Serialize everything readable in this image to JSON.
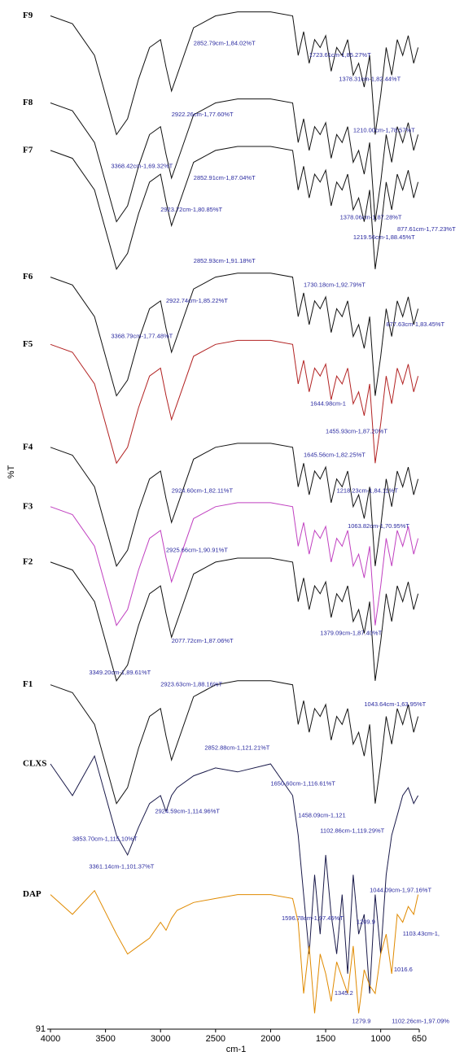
{
  "chart_data": {
    "type": "line",
    "xlabel": "cm-1",
    "ylabel": "%T",
    "xlim": [
      4000,
      650
    ],
    "ylim": [
      91,
      351
    ],
    "xticks": [
      4000,
      3500,
      3000,
      2500,
      2000,
      1500,
      1000,
      650
    ],
    "yticks": [
      {
        "value": 91,
        "label": "91"
      }
    ],
    "x": [
      4000,
      3800,
      3600,
      3400,
      3300,
      3200,
      3100,
      3000,
      2950,
      2900,
      2850,
      2700,
      2500,
      2300,
      2000,
      1800,
      1750,
      1700,
      1650,
      1600,
      1550,
      1500,
      1450,
      1400,
      1350,
      1300,
      1250,
      1200,
      1150,
      1100,
      1050,
      1000,
      950,
      900,
      850,
      800,
      750,
      700,
      660
    ],
    "series": [
      {
        "name": "F9",
        "color": "#111111",
        "values": [
          347,
          345,
          337,
          317,
          321,
          331,
          339,
          341,
          334,
          328,
          332,
          344,
          347,
          348,
          348,
          347,
          337,
          343,
          335,
          341,
          339,
          342,
          333,
          339,
          337,
          341,
          332,
          335,
          329,
          337,
          317,
          327,
          339,
          332,
          341,
          337,
          342,
          335,
          339
        ]
      },
      {
        "name": "F8",
        "color": "#111111",
        "values": [
          325,
          323,
          315,
          295,
          299,
          309,
          317,
          319,
          312,
          306,
          310,
          322,
          325,
          326,
          326,
          325,
          315,
          321,
          313,
          319,
          317,
          320,
          311,
          317,
          315,
          319,
          310,
          313,
          307,
          315,
          295,
          305,
          317,
          310,
          319,
          315,
          320,
          313,
          317
        ]
      },
      {
        "name": "F7",
        "color": "#111111",
        "values": [
          313,
          311,
          303,
          283,
          287,
          297,
          305,
          307,
          300,
          294,
          298,
          310,
          313,
          314,
          314,
          313,
          303,
          309,
          301,
          307,
          305,
          308,
          299,
          305,
          303,
          307,
          298,
          301,
          295,
          303,
          283,
          293,
          305,
          298,
          307,
          303,
          308,
          301,
          305
        ]
      },
      {
        "name": "F6",
        "color": "#111111",
        "values": [
          281,
          279,
          271,
          251,
          255,
          265,
          273,
          275,
          268,
          262,
          266,
          278,
          281,
          282,
          282,
          281,
          271,
          277,
          269,
          275,
          273,
          276,
          267,
          273,
          271,
          275,
          266,
          269,
          263,
          271,
          251,
          261,
          273,
          266,
          275,
          271,
          276,
          269,
          273
        ]
      },
      {
        "name": "F5",
        "color": "#b22222",
        "values": [
          264,
          262,
          254,
          234,
          238,
          248,
          256,
          258,
          251,
          245,
          249,
          261,
          264,
          265,
          265,
          264,
          254,
          260,
          252,
          258,
          256,
          259,
          250,
          256,
          254,
          258,
          249,
          252,
          246,
          254,
          234,
          244,
          256,
          249,
          258,
          254,
          259,
          252,
          256
        ]
      },
      {
        "name": "F4",
        "color": "#111111",
        "values": [
          238,
          236,
          228,
          208,
          212,
          222,
          230,
          232,
          225,
          219,
          223,
          235,
          238,
          239,
          239,
          238,
          228,
          234,
          226,
          232,
          230,
          233,
          224,
          230,
          228,
          232,
          223,
          226,
          220,
          228,
          208,
          218,
          230,
          223,
          232,
          228,
          233,
          226,
          230
        ]
      },
      {
        "name": "F3",
        "color": "#c040c0",
        "values": [
          223,
          221,
          213,
          193,
          197,
          207,
          215,
          217,
          210,
          204,
          208,
          220,
          223,
          224,
          224,
          223,
          213,
          219,
          211,
          217,
          215,
          218,
          209,
          215,
          213,
          217,
          208,
          211,
          205,
          213,
          193,
          203,
          215,
          208,
          217,
          213,
          218,
          211,
          215
        ]
      },
      {
        "name": "F2",
        "color": "#111111",
        "values": [
          209,
          207,
          199,
          179,
          183,
          193,
          201,
          203,
          196,
          190,
          194,
          206,
          209,
          210,
          210,
          209,
          199,
          205,
          197,
          203,
          201,
          204,
          195,
          201,
          199,
          203,
          194,
          197,
          191,
          199,
          179,
          189,
          201,
          194,
          203,
          199,
          204,
          197,
          201
        ]
      },
      {
        "name": "F1",
        "color": "#111111",
        "values": [
          178,
          176,
          168,
          148,
          152,
          162,
          170,
          172,
          165,
          159,
          163,
          175,
          178,
          179,
          179,
          178,
          168,
          174,
          166,
          172,
          170,
          173,
          164,
          170,
          168,
          172,
          163,
          166,
          160,
          168,
          148,
          158,
          170,
          163,
          172,
          168,
          173,
          166,
          170
        ]
      },
      {
        "name": "CLXS",
        "color": "#1a1a4a",
        "values": [
          158,
          150,
          160,
          140,
          135,
          142,
          148,
          150,
          146,
          150,
          152,
          155,
          157,
          156,
          158,
          150,
          140,
          125,
          110,
          130,
          115,
          135,
          120,
          110,
          125,
          105,
          130,
          115,
          120,
          100,
          125,
          110,
          130,
          140,
          145,
          150,
          152,
          148,
          150
        ]
      },
      {
        "name": "DAP",
        "color": "#e08a00",
        "values": [
          125,
          120,
          126,
          115,
          110,
          112,
          114,
          118,
          116,
          119,
          121,
          123,
          124,
          125,
          125,
          124,
          118,
          100,
          112,
          95,
          110,
          105,
          98,
          108,
          104,
          100,
          112,
          95,
          106,
          102,
          100,
          110,
          115,
          105,
          120,
          118,
          122,
          120,
          125
        ]
      }
    ],
    "annotations": [
      {
        "text": "2852.79cm-1,84.02%T",
        "x": 2700,
        "y": 340
      },
      {
        "text": "1723.61cm-1,85.27%T",
        "x": 1650,
        "y": 337
      },
      {
        "text": "1378.31cm-1,82.44%T",
        "x": 1380,
        "y": 331
      },
      {
        "text": "2922.26cm-1,77.60%T",
        "x": 2900,
        "y": 322
      },
      {
        "text": "1210.00cm-1,78.57%T",
        "x": 1250,
        "y": 318
      },
      {
        "text": "3368.42cm-1,69.32%T",
        "x": 3450,
        "y": 309
      },
      {
        "text": "2852.91cm-1,87.04%T",
        "x": 2700,
        "y": 306
      },
      {
        "text": "2923.72cm-1,80.85%T",
        "x": 3000,
        "y": 298
      },
      {
        "text": "1378.06cm-1,87.28%T",
        "x": 1370,
        "y": 296
      },
      {
        "text": "877.61cm-1,77.23%T",
        "x": 850,
        "y": 293
      },
      {
        "text": "1219.56cm-1,88.45%T",
        "x": 1250,
        "y": 291
      },
      {
        "text": "2852.93cm-1,91.18%T",
        "x": 2700,
        "y": 285
      },
      {
        "text": "1730.18cm-1,92.79%T",
        "x": 1700,
        "y": 279
      },
      {
        "text": "2922.74cm-1,85.22%T",
        "x": 2950,
        "y": 275
      },
      {
        "text": "3368.79cm-1,77.48%T",
        "x": 3450,
        "y": 266
      },
      {
        "text": "877.63cm-1,83.45%T",
        "x": 950,
        "y": 269
      },
      {
        "text": "1644.98cm-1",
        "x": 1640,
        "y": 249
      },
      {
        "text": "1455.93cm-1,87.20%T",
        "x": 1500,
        "y": 242
      },
      {
        "text": "1645.56cm-1,82.25%T",
        "x": 1700,
        "y": 236
      },
      {
        "text": "2924.60cm-1,82.11%T",
        "x": 2900,
        "y": 227
      },
      {
        "text": "1218.23cm-1,84.11%T",
        "x": 1400,
        "y": 227
      },
      {
        "text": "1063.82cm-1,70.95%T",
        "x": 1300,
        "y": 218
      },
      {
        "text": "2925.66cm-1,90.91%T",
        "x": 2950,
        "y": 212
      },
      {
        "text": "2077.72cm-1,87.06%T",
        "x": 2900,
        "y": 189
      },
      {
        "text": "1379.09cm-1,87.40%T",
        "x": 1550,
        "y": 191
      },
      {
        "text": "3349.20cm-1,89.61%T",
        "x": 3650,
        "y": 181
      },
      {
        "text": "2923.63cm-1,88.16%T",
        "x": 3000,
        "y": 178
      },
      {
        "text": "1043.64cm-1,63.95%T",
        "x": 1150,
        "y": 173
      },
      {
        "text": "2852.88cm-1,121.21%T",
        "x": 2600,
        "y": 162
      },
      {
        "text": "1650.60cm-1,116.61%T",
        "x": 2000,
        "y": 153
      },
      {
        "text": "2924.59cm-1,114.96%T",
        "x": 3050,
        "y": 146
      },
      {
        "text": "1458.09cm-1,121",
        "x": 1750,
        "y": 145
      },
      {
        "text": "3853.70cm-1,115.10%T",
        "x": 3800,
        "y": 139
      },
      {
        "text": "1102.86cm-1,119.29%T",
        "x": 1550,
        "y": 141
      },
      {
        "text": "3361.14cm-1,101.37%T",
        "x": 3650,
        "y": 132
      },
      {
        "text": "1044.09cm-1,97.16%T",
        "x": 1100,
        "y": 126
      },
      {
        "text": "1596.78cm-1,97.45%T",
        "x": 1900,
        "y": 119
      },
      {
        "text": "1209.9",
        "x": 1220,
        "y": 118
      },
      {
        "text": "1103.43cm-1,",
        "x": 800,
        "y": 115
      },
      {
        "text": "1016.6",
        "x": 880,
        "y": 106
      },
      {
        "text": "1345.2",
        "x": 1420,
        "y": 100
      },
      {
        "text": "1279.9",
        "x": 1260,
        "y": 93
      },
      {
        "text": "1102.26cm-1,97.09%",
        "x": 900,
        "y": 93
      }
    ]
  }
}
